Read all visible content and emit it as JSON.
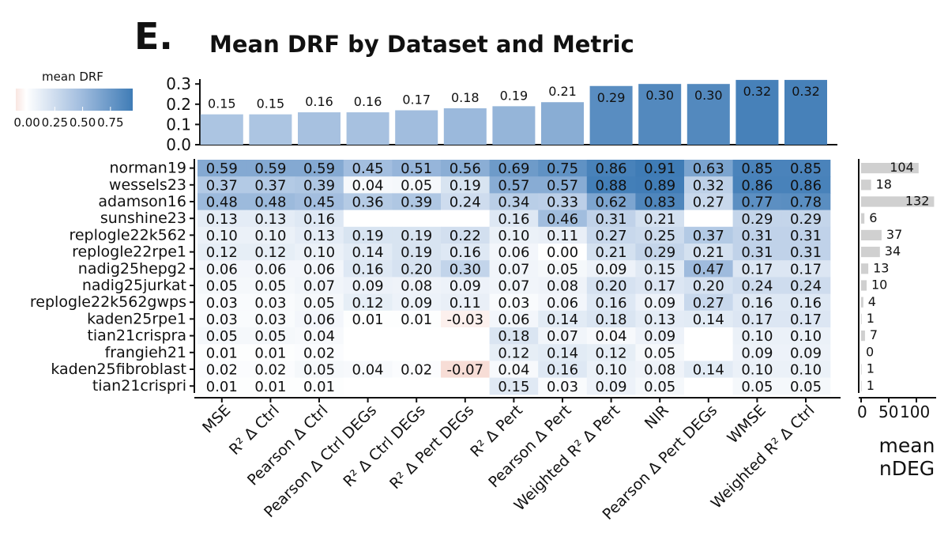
{
  "panel_letter": "E.",
  "chart_data": {
    "type": "heatmap",
    "title": "Mean DRF by Dataset and Metric",
    "colorbar": {
      "title": "mean DRF",
      "ticks": [
        "0.00",
        "0.25",
        "0.50",
        "0.75"
      ],
      "range": [
        -0.1,
        0.95
      ]
    },
    "columns": [
      "MSE",
      "R² Δ Ctrl",
      "Pearson Δ Ctrl",
      "Pearson Δ Ctrl DEGs",
      "R² Δ Ctrl DEGs",
      "R² Δ Pert DEGs",
      "R² Δ Pert",
      "Pearson Δ Pert",
      "Weighted R² Δ Pert",
      "NIR",
      "Pearson Δ Pert DEGs",
      "WMSE",
      "Weighted R² Δ Ctrl"
    ],
    "rows": [
      "norman19",
      "wessels23",
      "adamson16",
      "sunshine23",
      "replogle22k562",
      "replogle22rpe1",
      "nadig25hepg2",
      "nadig25jurkat",
      "replogle22k562gwps",
      "kaden25rpe1",
      "tian21crispra",
      "frangieh21",
      "kaden25fibroblast",
      "tian21crispri"
    ],
    "values": [
      [
        0.59,
        0.59,
        0.59,
        0.45,
        0.51,
        0.56,
        0.69,
        0.75,
        0.86,
        0.91,
        0.63,
        0.85,
        0.85
      ],
      [
        0.37,
        0.37,
        0.39,
        0.04,
        0.05,
        0.19,
        0.57,
        0.57,
        0.88,
        0.89,
        0.32,
        0.86,
        0.86
      ],
      [
        0.48,
        0.48,
        0.45,
        0.36,
        0.39,
        0.24,
        0.34,
        0.33,
        0.62,
        0.83,
        0.27,
        0.77,
        0.78
      ],
      [
        0.13,
        0.13,
        0.16,
        null,
        null,
        null,
        0.16,
        0.46,
        0.31,
        0.21,
        null,
        0.29,
        0.29
      ],
      [
        0.1,
        0.1,
        0.13,
        0.19,
        0.19,
        0.22,
        0.1,
        0.11,
        0.27,
        0.25,
        0.37,
        0.31,
        0.31
      ],
      [
        0.12,
        0.12,
        0.1,
        0.14,
        0.19,
        0.16,
        0.06,
        0.0,
        0.21,
        0.29,
        0.21,
        0.31,
        0.31
      ],
      [
        0.06,
        0.06,
        0.06,
        0.16,
        0.2,
        0.3,
        0.07,
        0.05,
        0.09,
        0.15,
        0.47,
        0.17,
        0.17
      ],
      [
        0.05,
        0.05,
        0.07,
        0.09,
        0.08,
        0.09,
        0.07,
        0.08,
        0.2,
        0.17,
        0.2,
        0.24,
        0.24
      ],
      [
        0.03,
        0.03,
        0.05,
        0.12,
        0.09,
        0.11,
        0.03,
        0.06,
        0.16,
        0.09,
        0.27,
        0.16,
        0.16
      ],
      [
        0.03,
        0.03,
        0.06,
        0.01,
        0.01,
        -0.03,
        0.06,
        0.14,
        0.18,
        0.13,
        0.14,
        0.17,
        0.17
      ],
      [
        0.05,
        0.05,
        0.04,
        null,
        null,
        null,
        0.18,
        0.07,
        0.04,
        0.09,
        null,
        0.1,
        0.1
      ],
      [
        0.01,
        0.01,
        0.02,
        null,
        null,
        null,
        0.12,
        0.14,
        0.12,
        0.05,
        null,
        0.09,
        0.09
      ],
      [
        0.02,
        0.02,
        0.05,
        0.04,
        0.02,
        -0.07,
        0.04,
        0.16,
        0.1,
        0.08,
        0.14,
        0.1,
        0.1
      ],
      [
        0.01,
        0.01,
        0.01,
        null,
        null,
        null,
        0.15,
        0.03,
        0.09,
        0.05,
        null,
        0.05,
        0.05
      ]
    ],
    "column_means": {
      "type": "bar",
      "values": [
        0.15,
        0.15,
        0.16,
        0.16,
        0.17,
        0.18,
        0.19,
        0.21,
        0.29,
        0.3,
        0.3,
        0.32,
        0.32
      ],
      "ylim": [
        0,
        0.32
      ],
      "yticks": [
        "0.0",
        "0.1",
        "0.2",
        "0.3"
      ]
    },
    "row_side_bar": {
      "type": "bar",
      "title": "mean\nnDEG",
      "title_lines": [
        "mean",
        "nDEG"
      ],
      "values": [
        104,
        18,
        132,
        6,
        37,
        34,
        13,
        10,
        4,
        1,
        7,
        0,
        1,
        1
      ],
      "xlim": [
        0,
        132
      ],
      "xticks": [
        "0",
        "50",
        "100"
      ]
    }
  }
}
